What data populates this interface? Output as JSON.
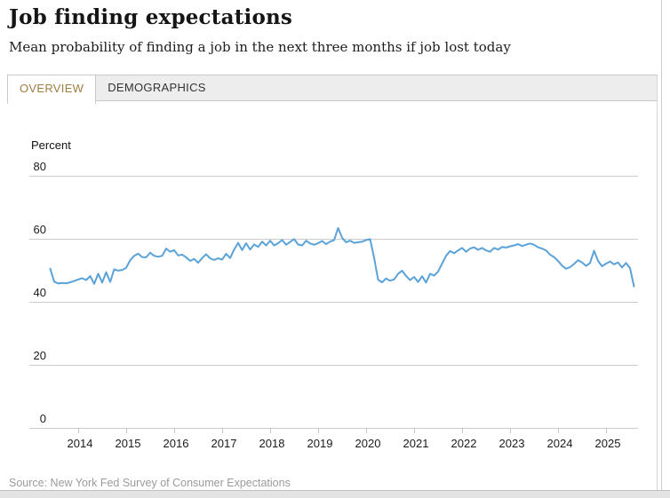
{
  "header": {
    "title": "Job finding expectations",
    "subtitle": "Mean probability of finding a job in the next three months if job lost today"
  },
  "tabs": [
    {
      "label": "OVERVIEW",
      "active": true
    },
    {
      "label": "DEMOGRAPHICS",
      "active": false
    }
  ],
  "footer": {
    "source": "Source: New York Fed Survey of Consumer Expectations"
  },
  "colors": {
    "line": "#5aa2d8",
    "grid": "#cccccc",
    "tick": "#c4c4c4",
    "axis_text": "#1a1a1a",
    "active_tab_text": "#9e7d42"
  },
  "chart_data": {
    "type": "line",
    "title": "Job finding expectations",
    "ylabel": "Percent",
    "ylim": [
      0,
      80
    ],
    "y_ticks": [
      0,
      20,
      40,
      60,
      80
    ],
    "x_tick_years": [
      2014,
      2015,
      2016,
      2017,
      2018,
      2019,
      2020,
      2021,
      2022,
      2023,
      2024,
      2025
    ],
    "grid": true,
    "legend": "none",
    "frequency": "monthly",
    "x_start": "2013-06",
    "x_end": "2025-08",
    "series": [
      {
        "name": "Mean probability of finding a job in the next three months if job lost today",
        "values": [
          50.5,
          46.4,
          45.8,
          46.0,
          45.9,
          46.2,
          46.6,
          47.1,
          47.5,
          46.9,
          48.2,
          45.7,
          48.9,
          46.1,
          49.4,
          46.3,
          50.3,
          49.9,
          50.1,
          50.8,
          53.2,
          54.6,
          55.3,
          54.2,
          54.1,
          55.6,
          54.6,
          54.3,
          54.6,
          56.9,
          55.9,
          56.4,
          54.7,
          55.0,
          54.1,
          53.0,
          53.6,
          52.4,
          53.9,
          55.1,
          53.8,
          53.3,
          53.8,
          53.4,
          55.2,
          53.9,
          56.6,
          58.7,
          56.4,
          58.6,
          56.6,
          58.2,
          57.4,
          59.1,
          57.9,
          59.4,
          57.9,
          58.6,
          59.6,
          58.1,
          59.0,
          59.9,
          58.2,
          57.9,
          59.4,
          58.5,
          58.1,
          58.6,
          59.3,
          58.3,
          59.1,
          59.6,
          63.4,
          60.3,
          58.9,
          59.4,
          58.7,
          58.9,
          59.1,
          59.6,
          59.9,
          54.0,
          47.0,
          46.2,
          47.4,
          46.7,
          47.1,
          48.9,
          49.9,
          48.2,
          46.9,
          47.9,
          46.3,
          48.1,
          46.1,
          48.9,
          48.3,
          49.6,
          52.1,
          54.6,
          56.1,
          55.4,
          56.3,
          57.1,
          55.9,
          56.9,
          57.3,
          56.5,
          57.1,
          56.3,
          55.9,
          57.1,
          56.6,
          57.4,
          57.2,
          57.6,
          57.9,
          58.3,
          57.7,
          58.1,
          58.5,
          58.1,
          57.3,
          56.9,
          56.3,
          55.0,
          54.2,
          53.0,
          51.5,
          50.5,
          51.0,
          52.0,
          53.2,
          52.5,
          51.4,
          52.3,
          56.2,
          53.0,
          51.3,
          52.1,
          52.8,
          51.9,
          52.5,
          50.9,
          52.3,
          50.7,
          44.9
        ]
      }
    ]
  }
}
